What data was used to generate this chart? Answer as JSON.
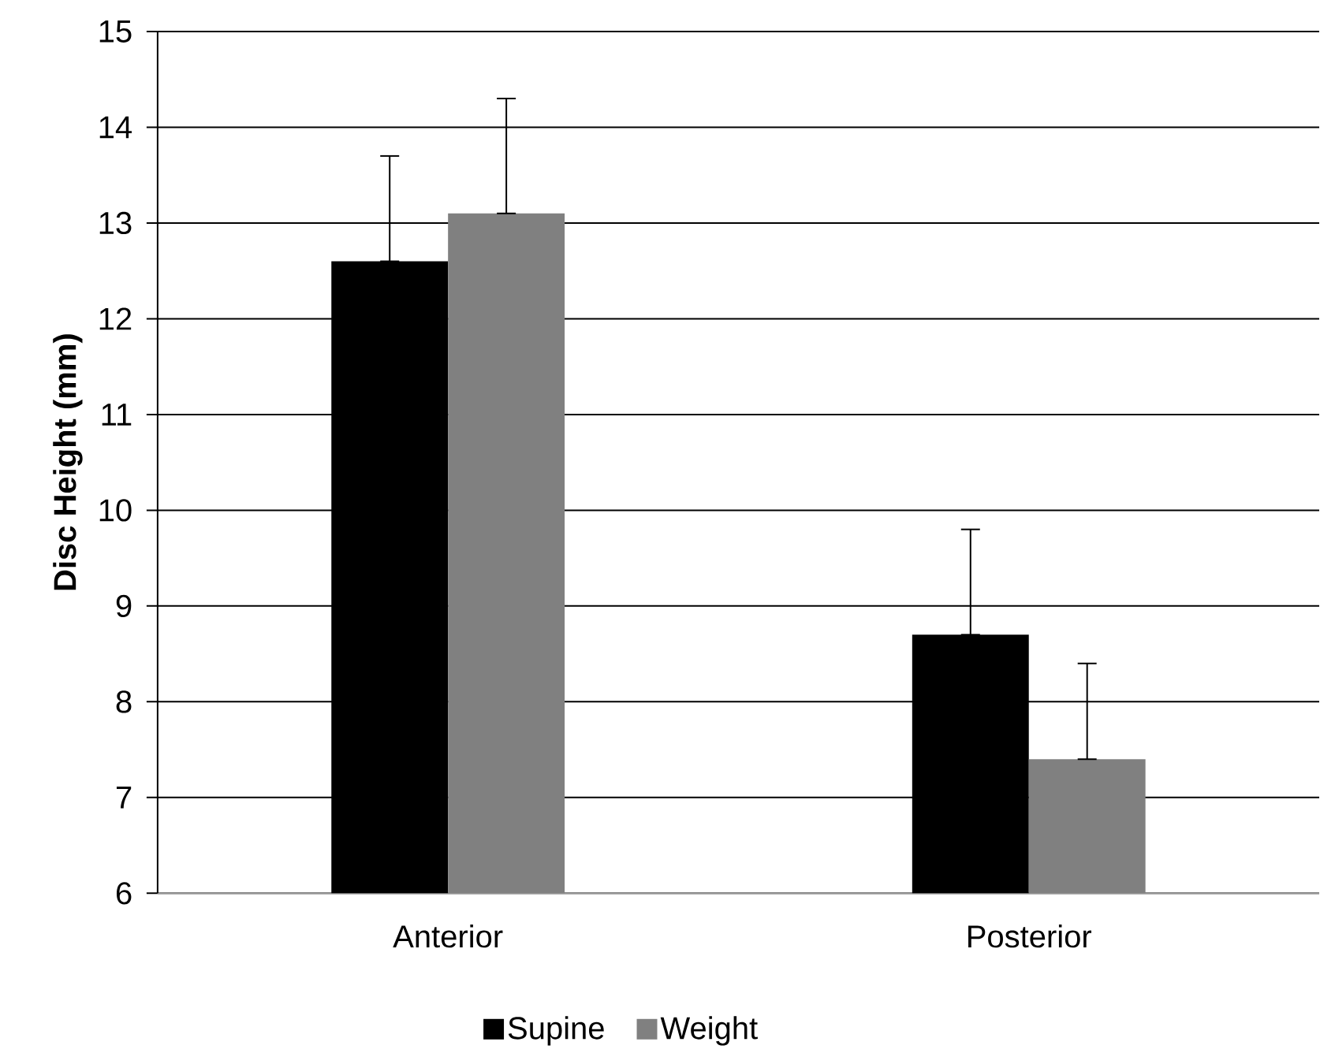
{
  "chart_data": {
    "type": "bar",
    "ylabel": "Disc Height (mm)",
    "categories": [
      "Anterior",
      "Posterior"
    ],
    "series": [
      {
        "name": "Supine",
        "color": "#000000",
        "values": [
          12.6,
          8.7
        ],
        "errors": [
          [
            12.6,
            13.7
          ],
          [
            8.7,
            9.8
          ]
        ]
      },
      {
        "name": "Weight",
        "color": "#808080",
        "values": [
          13.1,
          7.4
        ],
        "errors": [
          [
            13.1,
            14.3
          ],
          [
            7.4,
            8.4
          ]
        ]
      }
    ],
    "ylim": [
      6,
      15
    ],
    "yticks": [
      6,
      7,
      8,
      9,
      10,
      11,
      12,
      13,
      14,
      15
    ],
    "grid": "y",
    "legend": "bottom"
  }
}
